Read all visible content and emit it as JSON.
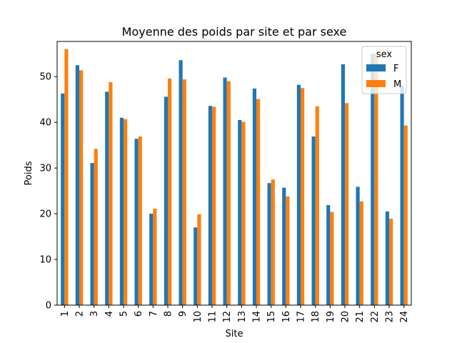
{
  "colors": {
    "F": "#1f77b4",
    "M": "#ff7f0e",
    "axis": "#000000",
    "legend_border": "#cccccc"
  },
  "chart_data": {
    "type": "bar",
    "title": "Moyenne des poids par site et par sexe",
    "xlabel": "Site",
    "ylabel": "Poids",
    "ylim": [
      0,
      57.7
    ],
    "yticks": [
      0,
      10,
      20,
      30,
      40,
      50
    ],
    "legend": {
      "title": "sex",
      "position": "top-right"
    },
    "categories": [
      "1",
      "2",
      "3",
      "4",
      "5",
      "6",
      "7",
      "8",
      "9",
      "10",
      "11",
      "12",
      "13",
      "14",
      "15",
      "16",
      "17",
      "18",
      "19",
      "20",
      "21",
      "22",
      "23",
      "24"
    ],
    "series": [
      {
        "name": "F",
        "values": [
          46.3,
          52.5,
          31.1,
          46.7,
          41.0,
          36.4,
          20.0,
          45.6,
          53.6,
          17.0,
          43.6,
          49.8,
          40.5,
          47.4,
          26.7,
          25.7,
          48.2,
          36.9,
          21.9,
          52.7,
          25.9,
          55.0,
          20.5,
          48.0
        ]
      },
      {
        "name": "M",
        "values": [
          56.0,
          51.4,
          34.2,
          48.8,
          40.7,
          36.9,
          21.1,
          49.6,
          49.4,
          19.9,
          43.4,
          49.0,
          40.1,
          45.1,
          27.5,
          23.8,
          47.5,
          43.5,
          20.4,
          44.2,
          22.7,
          55.2,
          18.9,
          39.3
        ]
      }
    ]
  }
}
